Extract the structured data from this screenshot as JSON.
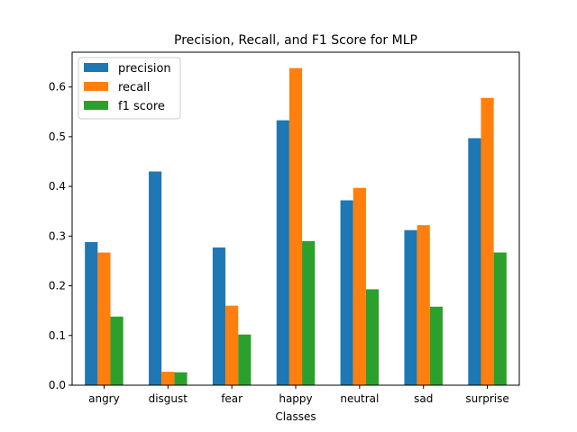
{
  "chart_data": {
    "type": "bar",
    "title": "Precision, Recall, and F1 Score for MLP",
    "xlabel": "Classes",
    "ylabel": "",
    "categories": [
      "angry",
      "disgust",
      "fear",
      "happy",
      "neutral",
      "sad",
      "surprise"
    ],
    "series": [
      {
        "name": "precision",
        "color": "#1f77b4",
        "values": [
          0.288,
          0.43,
          0.277,
          0.533,
          0.372,
          0.312,
          0.497
        ]
      },
      {
        "name": "recall",
        "color": "#ff7f0e",
        "values": [
          0.267,
          0.027,
          0.16,
          0.638,
          0.397,
          0.322,
          0.578
        ]
      },
      {
        "name": "f1 score",
        "color": "#2ca02c",
        "values": [
          0.138,
          0.026,
          0.102,
          0.29,
          0.193,
          0.158,
          0.267
        ]
      }
    ],
    "ylim": [
      0,
      0.67
    ],
    "yticks": [
      "0.0",
      "0.1",
      "0.2",
      "0.3",
      "0.4",
      "0.5",
      "0.6"
    ],
    "grid": false,
    "legend_position": "top-left"
  }
}
